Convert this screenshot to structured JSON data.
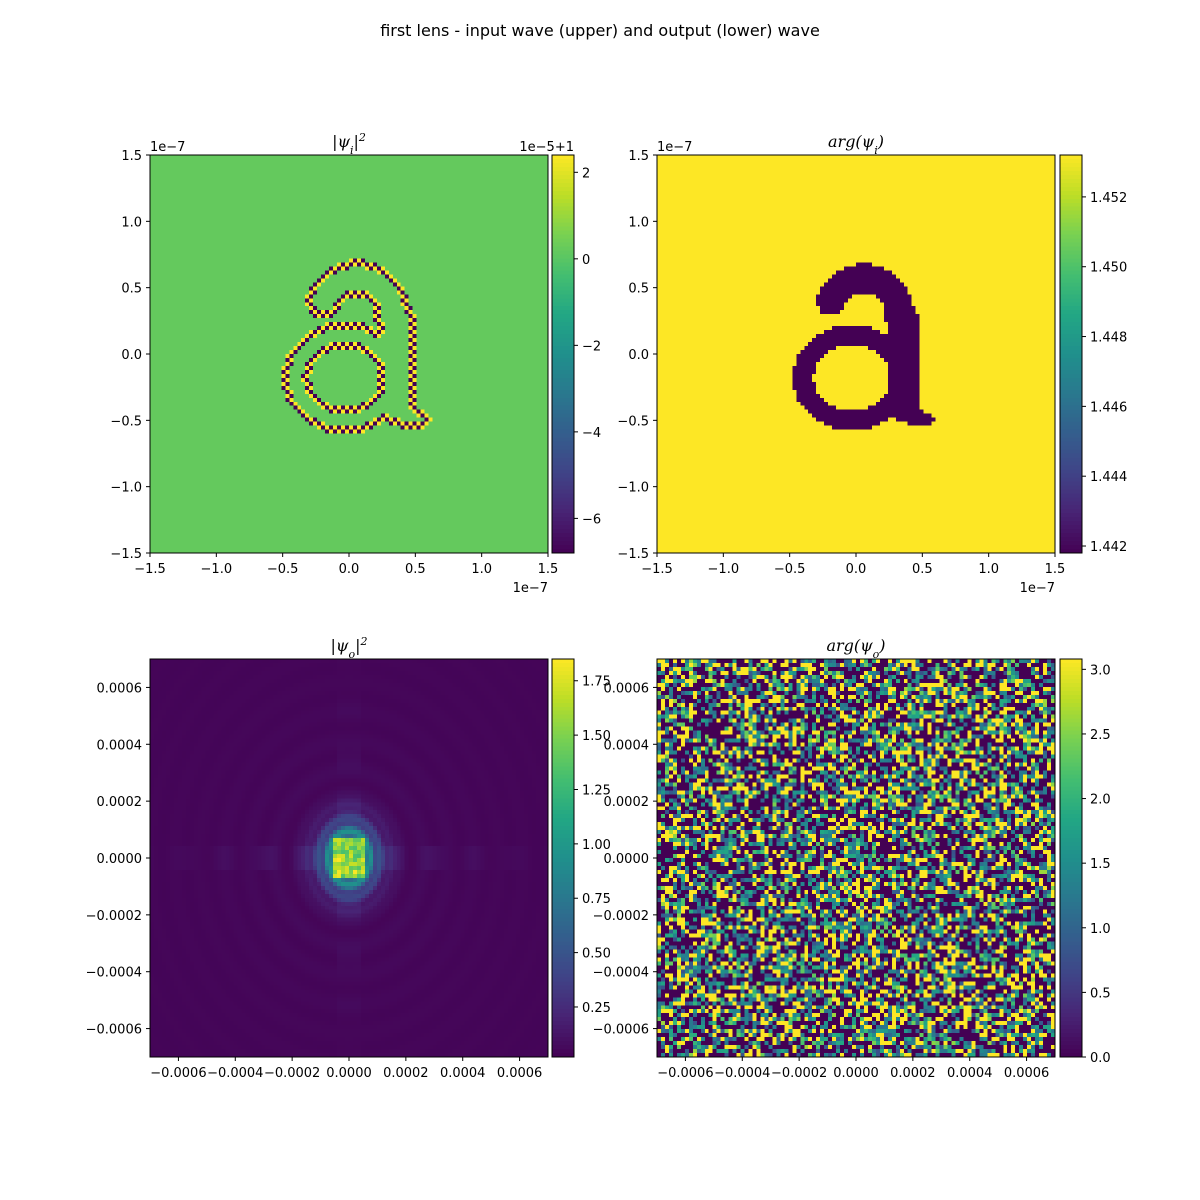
{
  "figure": {
    "title": "first lens - input wave (upper) and output (lower) wave",
    "background": "#ffffff"
  },
  "chart_data": [
    {
      "type": "heatmap",
      "id": "input-intensity",
      "title": {
        "base": "|ψ",
        "sub": "i",
        "tail": "|",
        "sup": "2"
      },
      "xlim": [
        -1.5,
        1.5
      ],
      "ylim": [
        -1.5,
        1.5
      ],
      "xticks": [
        -1.5,
        -1.0,
        -0.5,
        0.0,
        0.5,
        1.0,
        1.5
      ],
      "yticks": [
        -1.5,
        -1.0,
        -0.5,
        0.0,
        0.5,
        1.0,
        1.5
      ],
      "xtick_labels": [
        "−1.5",
        "−1.0",
        "−0.5",
        "0.0",
        "0.5",
        "1.0",
        "1.5"
      ],
      "ytick_labels": [
        "−1.5",
        "−1.0",
        "−0.5",
        "0.0",
        "0.5",
        "1.0",
        "1.5"
      ],
      "x_offset_text": "1e−7",
      "y_offset_text": "1e−7",
      "image_pattern": "outline-a",
      "background_value": 0.5,
      "colorbar": {
        "range": [
          -6.8,
          2.4
        ],
        "ticks": [
          2,
          0,
          -2,
          -4,
          -6
        ],
        "tick_labels": [
          "2",
          "0",
          "−2",
          "−4",
          "−6"
        ],
        "offset_text": "1e−5+1"
      }
    },
    {
      "type": "heatmap",
      "id": "input-phase",
      "title": {
        "base": "arg(ψ",
        "sub": "i",
        "tail": ")",
        "sup": ""
      },
      "xlim": [
        -1.5,
        1.5
      ],
      "ylim": [
        -1.5,
        1.5
      ],
      "xticks": [
        -1.5,
        -1.0,
        -0.5,
        0.0,
        0.5,
        1.0,
        1.5
      ],
      "yticks": [
        -1.5,
        -1.0,
        -0.5,
        0.0,
        0.5,
        1.0,
        1.5
      ],
      "xtick_labels": [
        "−1.5",
        "−1.0",
        "−0.5",
        "0.0",
        "0.5",
        "1.0",
        "1.5"
      ],
      "ytick_labels": [
        "−1.5",
        "−1.0",
        "−0.5",
        "0.0",
        "0.5",
        "1.0",
        "1.5"
      ],
      "x_offset_text": "1e−7",
      "y_offset_text": "1e−7",
      "image_pattern": "filled-a",
      "colorbar": {
        "range": [
          1.4418,
          1.4532
        ],
        "ticks": [
          1.452,
          1.45,
          1.448,
          1.446,
          1.444,
          1.442
        ],
        "tick_labels": [
          "1.452",
          "1.450",
          "1.448",
          "1.446",
          "1.444",
          "1.442"
        ],
        "offset_text": ""
      }
    },
    {
      "type": "heatmap",
      "id": "output-intensity",
      "title": {
        "base": "|ψ",
        "sub": "o",
        "tail": "|",
        "sup": "2"
      },
      "xlim": [
        -0.0007,
        0.0007
      ],
      "ylim": [
        -0.0007,
        0.0007
      ],
      "xticks": [
        -0.0006,
        -0.0004,
        -0.0002,
        0.0,
        0.0002,
        0.0004,
        0.0006
      ],
      "yticks": [
        -0.0006,
        -0.0004,
        -0.0002,
        0.0,
        0.0002,
        0.0004,
        0.0006
      ],
      "xtick_labels": [
        "−0.0006",
        "−0.0004",
        "−0.0002",
        "0.0000",
        "0.0002",
        "0.0004",
        "0.0006"
      ],
      "ytick_labels": [
        "−0.0006",
        "−0.0004",
        "−0.0002",
        "0.0000",
        "0.0002",
        "0.0004",
        "0.0006"
      ],
      "x_offset_text": "",
      "y_offset_text": "",
      "image_pattern": "diffraction",
      "colorbar": {
        "range": [
          0.02,
          1.85
        ],
        "ticks": [
          1.75,
          1.5,
          1.25,
          1.0,
          0.75,
          0.5,
          0.25
        ],
        "tick_labels": [
          "1.75",
          "1.50",
          "1.25",
          "1.00",
          "0.75",
          "0.50",
          "0.25"
        ],
        "offset_text": ""
      }
    },
    {
      "type": "heatmap",
      "id": "output-phase",
      "title": {
        "base": "arg(ψ",
        "sub": "o",
        "tail": ")",
        "sup": ""
      },
      "xlim": [
        -0.0007,
        0.0007
      ],
      "ylim": [
        -0.0007,
        0.0007
      ],
      "xticks": [
        -0.0006,
        -0.0004,
        -0.0002,
        0.0,
        0.0002,
        0.0004,
        0.0006
      ],
      "yticks": [
        -0.0006,
        -0.0004,
        -0.0002,
        0.0,
        0.0002,
        0.0004,
        0.0006
      ],
      "xtick_labels": [
        "−0.0006",
        "−0.0004",
        "−0.0002",
        "0.0000",
        "0.0002",
        "0.0004",
        "0.0006"
      ],
      "ytick_labels": [
        "−0.0006",
        "−0.0004",
        "−0.0002",
        "0.0000",
        "0.0002",
        "0.0004",
        "0.0006"
      ],
      "x_offset_text": "",
      "y_offset_text": "",
      "image_pattern": "random-phase",
      "colorbar": {
        "range": [
          0.0,
          3.08
        ],
        "ticks": [
          3.0,
          2.5,
          2.0,
          1.5,
          1.0,
          0.5,
          0.0
        ],
        "tick_labels": [
          "3.0",
          "2.5",
          "2.0",
          "1.5",
          "1.0",
          "0.5",
          "0.0"
        ],
        "offset_text": ""
      }
    }
  ]
}
